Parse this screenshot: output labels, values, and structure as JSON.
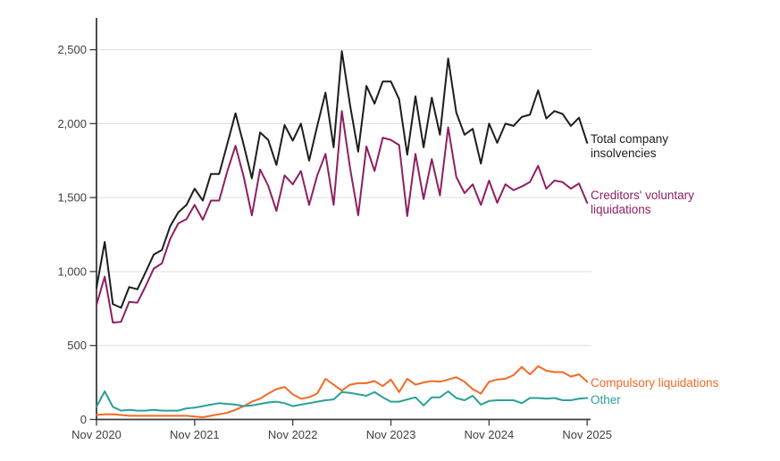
{
  "chart_data": {
    "type": "line",
    "title": "",
    "x_start": "Nov 2020",
    "x_end": "Nov 2025",
    "x_interval": "monthly",
    "points_per_series": 61,
    "x_tick_labels": [
      "Nov 2020",
      "Nov 2021",
      "Nov 2022",
      "Nov 2023",
      "Nov 2024",
      "Nov 2025"
    ],
    "y_ticks": [
      0,
      500,
      1000,
      1500,
      2000,
      2500
    ],
    "y_tick_labels": [
      "0",
      "500",
      "1,000",
      "1,500",
      "2,000",
      "2,500"
    ],
    "ylim": [
      0,
      2500
    ],
    "grid": "horizontal",
    "legend_position": "right-of-line-ends",
    "axis_color": "#3a3a3a",
    "grid_color": "#dcdcdc",
    "tick_label_color": "#414042",
    "series": [
      {
        "name": "Total company insolvencies",
        "legend_lines": [
          "Total company",
          "insolvencies"
        ],
        "color": "#1d1d1b",
        "values": [
          890,
          1200,
          780,
          755,
          895,
          880,
          995,
          1115,
          1145,
          1305,
          1400,
          1450,
          1560,
          1480,
          1660,
          1660,
          1865,
          2070,
          1855,
          1630,
          1940,
          1890,
          1720,
          1990,
          1885,
          2000,
          1750,
          1985,
          2210,
          1840,
          2490,
          2125,
          1810,
          2255,
          2135,
          2285,
          2285,
          2165,
          1790,
          2185,
          1840,
          2175,
          1925,
          2440,
          2075,
          1925,
          1965,
          1730,
          2000,
          1870,
          2000,
          1985,
          2045,
          2060,
          2225,
          2035,
          2085,
          2065,
          1985,
          2040,
          1870
        ]
      },
      {
        "name": "Creditors' voluntary liquidations",
        "legend_lines": [
          "Creditors' voluntary",
          "liquidations"
        ],
        "color": "#8e2063",
        "values": [
          775,
          965,
          655,
          660,
          795,
          790,
          900,
          1020,
          1055,
          1220,
          1325,
          1355,
          1450,
          1350,
          1480,
          1480,
          1680,
          1850,
          1640,
          1380,
          1690,
          1580,
          1410,
          1650,
          1590,
          1680,
          1450,
          1650,
          1795,
          1450,
          2085,
          1700,
          1380,
          1845,
          1680,
          1905,
          1890,
          1855,
          1375,
          1795,
          1490,
          1760,
          1515,
          1975,
          1640,
          1530,
          1590,
          1450,
          1615,
          1465,
          1590,
          1550,
          1575,
          1605,
          1715,
          1560,
          1615,
          1605,
          1560,
          1595,
          1465
        ]
      },
      {
        "name": "Compulsory liquidations",
        "legend_lines": [
          "Compulsory liquidations"
        ],
        "color": "#f46a25",
        "values": [
          30,
          35,
          35,
          30,
          25,
          25,
          25,
          25,
          25,
          25,
          25,
          25,
          20,
          15,
          25,
          35,
          45,
          65,
          90,
          120,
          140,
          175,
          205,
          220,
          170,
          140,
          150,
          175,
          275,
          235,
          195,
          235,
          245,
          245,
          260,
          225,
          270,
          185,
          275,
          235,
          250,
          260,
          255,
          270,
          285,
          255,
          205,
          175,
          255,
          270,
          275,
          300,
          355,
          305,
          360,
          330,
          320,
          320,
          290,
          305,
          255
        ]
      },
      {
        "name": "Other",
        "legend_lines": [
          "Other"
        ],
        "color": "#28a197",
        "values": [
          85,
          190,
          85,
          60,
          65,
          60,
          60,
          65,
          60,
          60,
          60,
          75,
          80,
          90,
          100,
          110,
          105,
          100,
          90,
          95,
          105,
          115,
          120,
          110,
          90,
          100,
          110,
          120,
          130,
          135,
          185,
          180,
          170,
          160,
          185,
          150,
          120,
          120,
          135,
          150,
          95,
          150,
          150,
          190,
          145,
          130,
          160,
          100,
          125,
          130,
          130,
          130,
          110,
          145,
          145,
          140,
          145,
          130,
          130,
          140,
          145
        ]
      }
    ]
  }
}
